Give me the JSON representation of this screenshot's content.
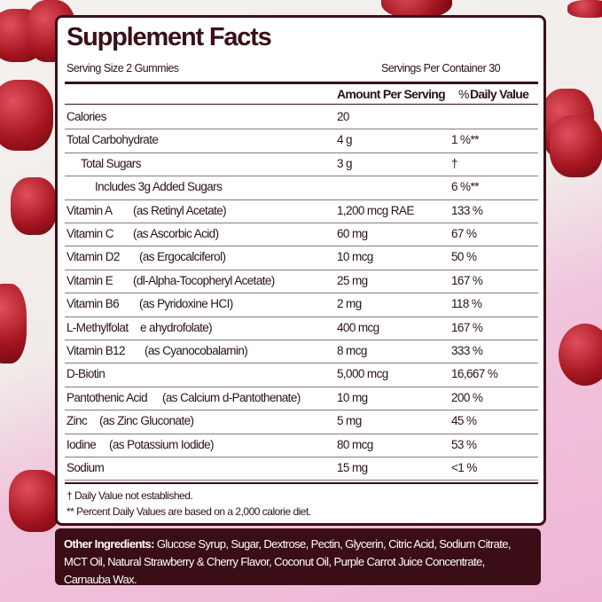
{
  "title": "Supplement Facts",
  "serving_size": "Serving Size 2 Gummies",
  "servings_per_container": "Servings Per Container 30",
  "headers": {
    "amount": "Amount Per Serving",
    "dv_prefix": "%",
    "dv": "Daily Value"
  },
  "rows": [
    {
      "name": "Calories",
      "sub": "",
      "amount": "20",
      "dv": ""
    },
    {
      "name": "Total Carbohydrate",
      "sub": "",
      "amount": "4 g",
      "dv": "1 %**"
    },
    {
      "name": "Total Sugars",
      "sub": "",
      "amount": "3 g",
      "dv": "†"
    },
    {
      "name": "Includes 3g Added Sugars",
      "sub": "",
      "amount": "",
      "dv": "6 %**"
    },
    {
      "name": "Vitamin A",
      "sub": "(as Retinyl Acetate)",
      "amount": "1,200 mcg RAE",
      "dv": "133 %"
    },
    {
      "name": "Vitamin C",
      "sub": "(as Ascorbic Acid)",
      "amount": "60 mg",
      "dv": "67 %"
    },
    {
      "name": "Vitamin D2",
      "sub": "(as Ergocalciferol)",
      "amount": "10 mcg",
      "dv": "50 %"
    },
    {
      "name": "Vitamin E",
      "sub": "(dl-Alpha-Tocopheryl Acetate)",
      "amount": "25 mg",
      "dv": "167 %"
    },
    {
      "name": "Vitamin B6",
      "sub": "(as Pyridoxine HCI)",
      "amount": "2 mg",
      "dv": "118 %"
    },
    {
      "name": "L-Methylfolat",
      "sub": "e ahydrofolate)",
      "amount": "400 mcg",
      "dv": "167 %"
    },
    {
      "name": "Vitamin B12",
      "sub": "(as Cyanocobalamin)",
      "amount": "8 mcg",
      "dv": "333 %"
    },
    {
      "name": "D-Biotin",
      "sub": "",
      "amount": "5,000 mcg",
      "dv": "16,667 %"
    },
    {
      "name": "Pantothenic Acid",
      "sub": "(as Calcium d-Pantothenate)",
      "amount": "10 mg",
      "dv": "200 %"
    },
    {
      "name": "Zinc",
      "sub": "(as Zinc Gluconate)",
      "amount": "5 mg",
      "dv": "45 %"
    },
    {
      "name": "Iodine",
      "sub": "(as Potassium Iodide)",
      "amount": "80 mcg",
      "dv": "53 %"
    },
    {
      "name": "Sodium",
      "sub": "",
      "amount": "15 mg",
      "dv": "<1 %"
    }
  ],
  "footnotes": [
    "† Daily Value not established.",
    "** Percent Daily Values are based on a 2,000 calorie diet."
  ],
  "other_ingredients": {
    "label": "Other Ingredients:",
    "text": " Glucose Syrup, Sugar, Dextrose, Pectin, Glycerin, Citric Acid, Sodium Citrate, MCT Oil, Natural Strawberry & Cherry Flavor, Coconut Oil, Purple Carrot Juice Concentrate, Carnauba Wax."
  },
  "colors": {
    "brand_dark": "#3b0d17",
    "background_pink": "#efb6d6",
    "gummy_red": "#a3141f"
  }
}
